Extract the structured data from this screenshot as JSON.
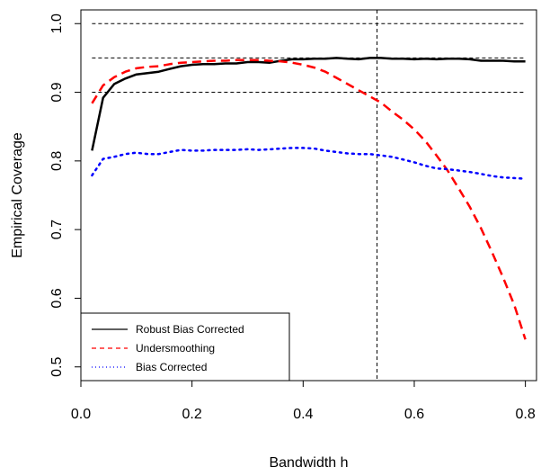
{
  "chart_data": {
    "type": "line",
    "title": "",
    "xlabel": "Bandwidth h",
    "ylabel": "Empirical Coverage",
    "xlim": [
      0.0,
      0.82
    ],
    "ylim": [
      0.48,
      1.02
    ],
    "x_ticks": [
      0.0,
      0.2,
      0.4,
      0.6,
      0.8
    ],
    "x_tick_labels": [
      "0.0",
      "0.2",
      "0.4",
      "0.6",
      "0.8"
    ],
    "y_ticks": [
      0.5,
      0.6,
      0.7,
      0.8,
      0.9,
      1.0
    ],
    "y_tick_labels": [
      "0.5",
      "0.6",
      "0.7",
      "0.8",
      "0.9",
      "1.0"
    ],
    "grid": false,
    "legend_position": "bottom-left",
    "reference_lines": {
      "horizontal": [
        1.0,
        0.95,
        0.9
      ],
      "vertical": [
        0.533
      ]
    },
    "series": [
      {
        "name": "Robust Bias Corrected",
        "color": "#000000",
        "dash": "solid",
        "x": [
          0.02,
          0.04,
          0.06,
          0.08,
          0.1,
          0.12,
          0.14,
          0.16,
          0.18,
          0.2,
          0.22,
          0.24,
          0.26,
          0.28,
          0.3,
          0.32,
          0.34,
          0.36,
          0.38,
          0.4,
          0.42,
          0.44,
          0.46,
          0.48,
          0.5,
          0.52,
          0.54,
          0.56,
          0.58,
          0.6,
          0.62,
          0.64,
          0.66,
          0.68,
          0.7,
          0.72,
          0.74,
          0.76,
          0.78,
          0.8
        ],
        "y": [
          0.815,
          0.892,
          0.912,
          0.92,
          0.926,
          0.928,
          0.93,
          0.934,
          0.938,
          0.94,
          0.941,
          0.941,
          0.942,
          0.942,
          0.944,
          0.944,
          0.943,
          0.946,
          0.948,
          0.948,
          0.949,
          0.949,
          0.95,
          0.949,
          0.948,
          0.95,
          0.95,
          0.949,
          0.949,
          0.948,
          0.949,
          0.948,
          0.949,
          0.949,
          0.948,
          0.946,
          0.946,
          0.946,
          0.945,
          0.945
        ]
      },
      {
        "name": "Undersmoothing",
        "color": "#ff0000",
        "dash": "dashed",
        "x": [
          0.02,
          0.04,
          0.06,
          0.08,
          0.1,
          0.12,
          0.14,
          0.16,
          0.18,
          0.2,
          0.22,
          0.24,
          0.26,
          0.28,
          0.3,
          0.32,
          0.34,
          0.36,
          0.38,
          0.4,
          0.42,
          0.44,
          0.46,
          0.48,
          0.5,
          0.52,
          0.54,
          0.56,
          0.58,
          0.6,
          0.62,
          0.64,
          0.66,
          0.68,
          0.7,
          0.72,
          0.74,
          0.76,
          0.78,
          0.8
        ],
        "y": [
          0.884,
          0.91,
          0.922,
          0.93,
          0.935,
          0.937,
          0.938,
          0.941,
          0.943,
          0.944,
          0.945,
          0.946,
          0.946,
          0.947,
          0.947,
          0.947,
          0.946,
          0.945,
          0.943,
          0.94,
          0.936,
          0.93,
          0.921,
          0.912,
          0.903,
          0.894,
          0.885,
          0.872,
          0.86,
          0.846,
          0.829,
          0.808,
          0.786,
          0.76,
          0.733,
          0.702,
          0.667,
          0.63,
          0.59,
          0.54
        ]
      },
      {
        "name": "Bias Corrected",
        "color": "#0000ff",
        "dash": "dotted",
        "x": [
          0.02,
          0.04,
          0.06,
          0.08,
          0.1,
          0.12,
          0.14,
          0.16,
          0.18,
          0.2,
          0.22,
          0.24,
          0.26,
          0.28,
          0.3,
          0.32,
          0.34,
          0.36,
          0.38,
          0.4,
          0.42,
          0.44,
          0.46,
          0.48,
          0.5,
          0.52,
          0.54,
          0.56,
          0.58,
          0.6,
          0.62,
          0.64,
          0.66,
          0.68,
          0.7,
          0.72,
          0.74,
          0.76,
          0.78,
          0.8
        ],
        "y": [
          0.779,
          0.803,
          0.806,
          0.81,
          0.812,
          0.81,
          0.81,
          0.813,
          0.816,
          0.815,
          0.815,
          0.816,
          0.816,
          0.816,
          0.817,
          0.816,
          0.817,
          0.818,
          0.819,
          0.819,
          0.818,
          0.815,
          0.813,
          0.811,
          0.81,
          0.81,
          0.808,
          0.806,
          0.802,
          0.798,
          0.793,
          0.789,
          0.788,
          0.786,
          0.784,
          0.781,
          0.778,
          0.776,
          0.775,
          0.774
        ]
      }
    ]
  }
}
